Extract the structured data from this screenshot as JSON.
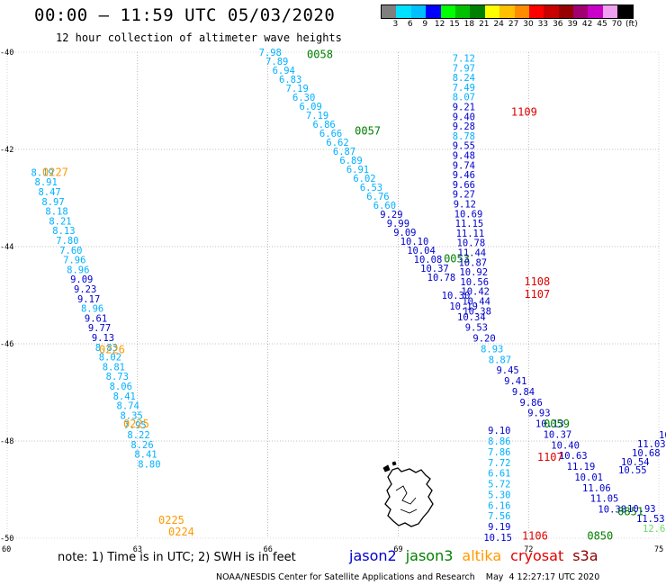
{
  "title": "00:00 – 11:59 UTC 05/03/2020",
  "subtitle": "12 hour collection of altimeter wave heights",
  "legend": {
    "colors": [
      "#7f7f7f",
      "#00e0ff",
      "#00bfff",
      "#0000ff",
      "#00ff00",
      "#00c000",
      "#008000",
      "#ffff00",
      "#ffc000",
      "#ff8c00",
      "#ff0000",
      "#c80000",
      "#960000",
      "#a00070",
      "#c800c8",
      "#f0a0f0",
      "#000000"
    ],
    "labels": [
      "3",
      "6",
      "9",
      "12",
      "15",
      "18",
      "21",
      "24",
      "27",
      "30",
      "33",
      "36",
      "39",
      "42",
      "45",
      "70",
      "(ft)"
    ]
  },
  "axes": {
    "lon_labels": [
      "60",
      "63",
      "66",
      "69",
      "72",
      "75"
    ],
    "lat_labels": [
      "-40",
      "-42",
      "-44",
      "-46",
      "-48",
      "-50"
    ]
  },
  "colors": {
    "jason2": "#0000cc",
    "jason3": "#008000",
    "altika": "#ff9900",
    "cryosat": "#e00000",
    "s3a": "#8b0000",
    "light": "#00b0ff"
  },
  "tracks": {
    "altika_1": {
      "lon_start": 60.55,
      "lat_start": -42.47,
      "lat_step": -0.2,
      "values": [
        "8.19",
        "8.91",
        "8.47",
        "8.97",
        "8.18",
        "8.21",
        "8.13",
        "7.80",
        "7.60",
        "7.96",
        "8.96",
        "9.09",
        "9.23",
        "9.17",
        "8.96",
        "9.61",
        "9.77",
        "9.13",
        "8.83",
        "8.02",
        "8.81",
        "8.73",
        "8.06",
        "8.41",
        "8.74",
        "8.35",
        "7.95",
        "8.22",
        "8.26",
        "8.41",
        "8.80"
      ],
      "times": [
        {
          "label": "0227",
          "lat": -42.47
        },
        {
          "label": "0226",
          "lat": -46.12
        },
        {
          "label": "0225",
          "lat": -47.65
        },
        {
          "label": "0225",
          "lat": -49.63
        },
        {
          "label": "0224",
          "lat": -49.87
        }
      ]
    },
    "jason3_1": {
      "values": [
        "7.98",
        "7.89",
        "6.94",
        "6.83",
        "7.19",
        "6.30",
        "6.09",
        "7.19",
        "6.86",
        "6.66",
        "6.62",
        "6.87",
        "6.89",
        "6.91",
        "6.02",
        "6.53",
        "6.76",
        "6.60",
        "9.29",
        "9.99",
        "9.09",
        "10.10",
        "10.04",
        "10.08",
        "10.37",
        "10.78"
      ],
      "times": [
        {
          "label": "0058",
          "lon": 66.9,
          "lat": -40.05
        },
        {
          "label": "0057",
          "lon": 68.0,
          "lat": -41.62
        },
        {
          "label": "0053",
          "lon": 70.05,
          "lat": -44.25
        }
      ]
    },
    "jason2_1": {
      "lon": 70.25,
      "lat_start": -40.12,
      "lat_step": -0.2,
      "values": [
        "7.12",
        "7.97",
        "8.24",
        "7.49",
        "8.07",
        "9.21",
        "9.40",
        "9.28",
        "8.78",
        "9.55",
        "9.48",
        "9.74",
        "9.46",
        "9.66",
        "9.27",
        "9.12",
        "10.69",
        "11.15",
        "11.11",
        "10.78",
        "11.44",
        "10.87",
        "10.92",
        "10.56",
        "10.42",
        "10.44",
        "10.38"
      ],
      "times": [
        {
          "label": "1109",
          "lon": 71.6,
          "lat": -41.23
        },
        {
          "label": "1108",
          "lon": 71.9,
          "lat": -44.72
        },
        {
          "label": "1107",
          "lon": 71.9,
          "lat": -44.98
        }
      ]
    },
    "jason2_2": {
      "values": [
        "10.30",
        "10.19",
        "10.34",
        "9.53",
        "9.20",
        "8.93",
        "8.87",
        "9.45",
        "9.41",
        "9.84",
        "9.86",
        "9.93",
        "10.13",
        "10.37",
        "10.40",
        "10.63",
        "11.19",
        "10.01",
        "11.06",
        "11.05",
        "10.38"
      ],
      "times": [
        {
          "label": "0059",
          "lon": 72.35,
          "lat": -47.65
        },
        {
          "label": "0850",
          "lon": 73.35,
          "lat": -49.95
        },
        {
          "label": "0851",
          "lon": 74.05,
          "lat": -49.45
        }
      ]
    },
    "cryosat_1": {
      "lon": 71.15,
      "lat_start": -47.78,
      "lat_step": -0.22,
      "values": [
        "9.10",
        "8.86",
        "7.86",
        "7.72",
        "6.61",
        "5.72",
        "5.30",
        "6.16",
        "7.56",
        "9.19",
        "10.15"
      ],
      "times": [
        {
          "label": "1107",
          "lon": 72.2,
          "lat": -48.33
        },
        {
          "label": "1106",
          "lon": 71.85,
          "lat": -49.95
        }
      ]
    },
    "east": {
      "values": [
        "10.2",
        "11.03",
        "10.68",
        "10.54",
        "10.55",
        "10.93",
        "11.53",
        "12.63"
      ]
    }
  },
  "note": "note: 1) Time is in UTC; 2) SWH is in feet",
  "satellites": [
    {
      "name": "jason2",
      "color": "#0000cc"
    },
    {
      "name": "jason3",
      "color": "#008000"
    },
    {
      "name": "altika",
      "color": "#ff9900"
    },
    {
      "name": "cryosat",
      "color": "#e00000"
    },
    {
      "name": "s3a",
      "color": "#8b0000"
    }
  ],
  "footer": "NOAA/NESDIS Center for Satellite Applications and Research    May  4 12:27:17 UTC 2020"
}
